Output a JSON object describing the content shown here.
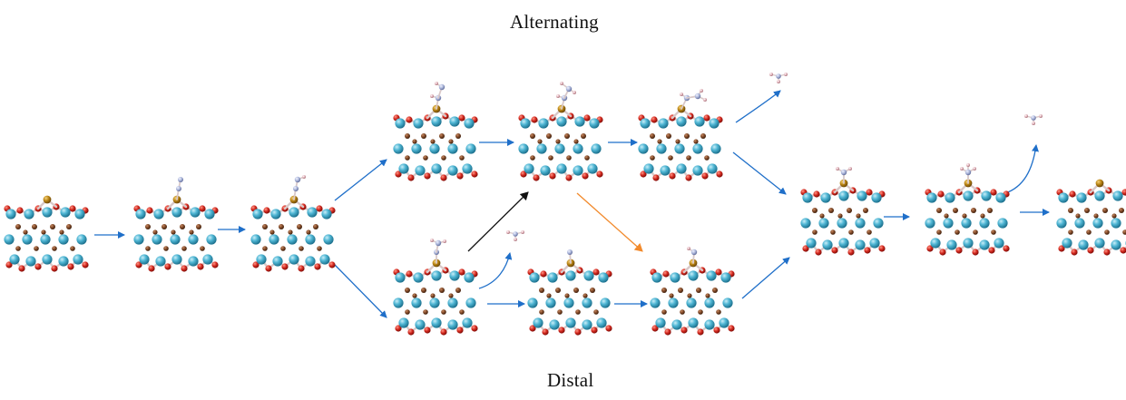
{
  "labels": {
    "top_pathway": "Alternating",
    "bottom_pathway": "Distal"
  },
  "colors": {
    "background": "#ffffff",
    "metal_atom": "#4fb6d4",
    "oxygen_atom": "#d42a20",
    "small_atom": "#7a4424",
    "dopant_atom": "#b98415",
    "nitrogen_atom": "#a9b4d9",
    "hydrogen_atom": "#e2b4bc",
    "bond": "#d9c9c9",
    "arrow_main": "#1f6fc9",
    "arrow_cross": "#111111",
    "arrow_alt": "#f28a2c"
  },
  "structures": [
    {
      "id": "slab",
      "adsorbate": "none"
    },
    {
      "id": "n2-adsorbed",
      "adsorbate": "N2"
    },
    {
      "id": "n2h",
      "adsorbate": "N2H"
    },
    {
      "id": "alternating-nhnh",
      "adsorbate": "NHNH"
    },
    {
      "id": "alternating-nhnh2",
      "adsorbate": "NHNH2"
    },
    {
      "id": "alternating-nh2nh2",
      "adsorbate": "NH2NH2"
    },
    {
      "id": "distal-nnh2",
      "adsorbate": "NNH2"
    },
    {
      "id": "distal-n",
      "adsorbate": "N"
    },
    {
      "id": "distal-nh",
      "adsorbate": "NH"
    },
    {
      "id": "nh2",
      "adsorbate": "NH2"
    },
    {
      "id": "nh3-adsorbed",
      "adsorbate": "NH3"
    },
    {
      "id": "slab-final",
      "adsorbate": "none"
    }
  ],
  "released_molecules": [
    {
      "id": "nh3-released-alternating",
      "molecule": "NH3"
    },
    {
      "id": "nh3-released-distal",
      "molecule": "NH3"
    },
    {
      "id": "nh3-released-final",
      "molecule": "NH3"
    }
  ]
}
